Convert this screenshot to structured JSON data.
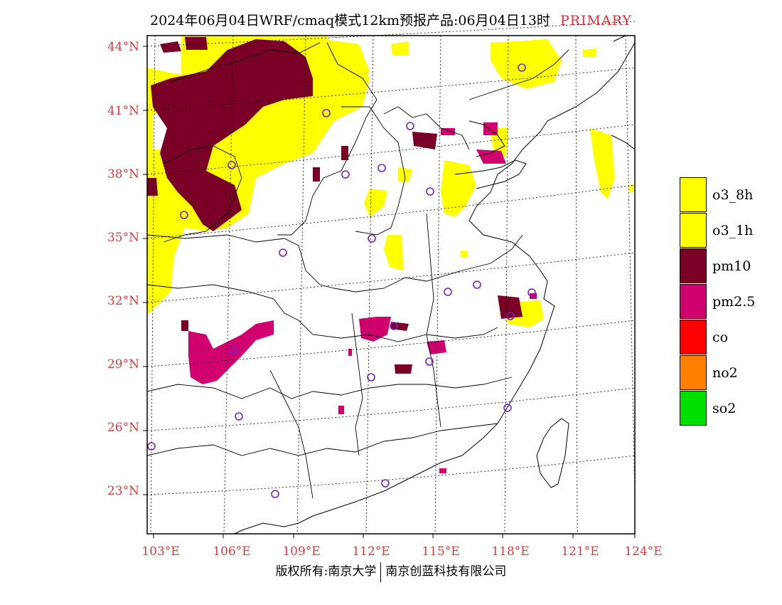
{
  "title": {
    "text": "2024年06月04日WRF/cmaq模式12km预报产品:06月04日13时",
    "tag": "PRIMARY"
  },
  "lat_labels": [
    "44°N",
    "41°N",
    "38°N",
    "35°N",
    "32°N",
    "29°N",
    "26°N",
    "23°N"
  ],
  "lon_labels": [
    "103°E",
    "106°E",
    "109°E",
    "112°E",
    "115°E",
    "118°E",
    "121°E",
    "124°E"
  ],
  "legend": [
    {
      "label": "o3_8h",
      "color": "#ffff00"
    },
    {
      "label": "o3_1h",
      "color": "#ffff00"
    },
    {
      "label": "pm10",
      "color": "#7a0028"
    },
    {
      "label": "pm2.5",
      "color": "#d0006f"
    },
    {
      "label": "co",
      "color": "#ff0000"
    },
    {
      "label": "no2",
      "color": "#ff8000"
    },
    {
      "label": "so2",
      "color": "#00e000"
    }
  ],
  "footer": {
    "left": "版权所有:南京大学",
    "right": "南京创蓝科技有限公司"
  }
}
